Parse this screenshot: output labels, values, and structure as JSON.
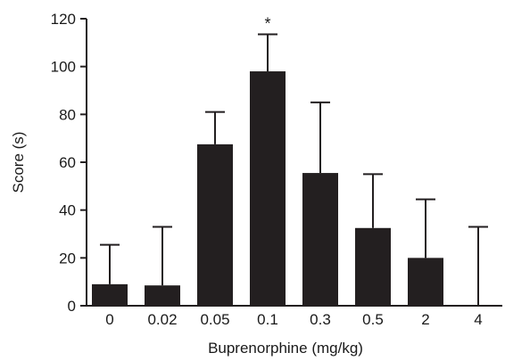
{
  "chart_data": {
    "type": "bar",
    "categories": [
      "0",
      "0.02",
      "0.05",
      "0.1",
      "0.3",
      "0.5",
      "2",
      "4"
    ],
    "values": [
      9,
      8.5,
      67.5,
      98,
      55.5,
      32.5,
      20,
      0
    ],
    "error_upper": [
      25.5,
      33,
      81,
      113.5,
      85,
      55,
      44.5,
      33
    ],
    "significance": [
      "",
      "",
      "",
      "*",
      "",
      "",
      "",
      ""
    ],
    "xlabel": "Buprenorphine (mg/kg)",
    "ylabel": "Score (s)",
    "ylim": [
      0,
      120
    ],
    "yticks": [
      0,
      20,
      40,
      60,
      80,
      100,
      120
    ],
    "grid": false,
    "colors": {
      "bar": "#231f20",
      "axis": "#231f20"
    }
  }
}
